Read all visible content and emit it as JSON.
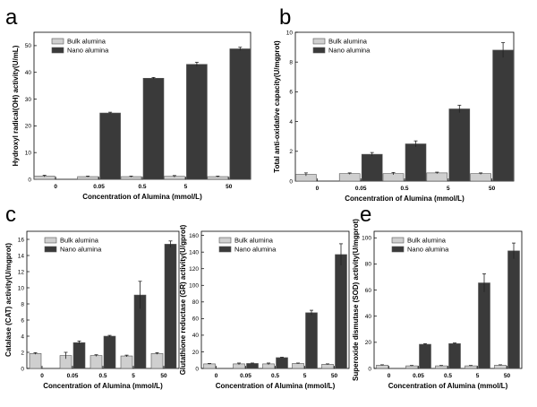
{
  "figure": {
    "panel_letters": [
      "a",
      "b",
      "c",
      "",
      "e"
    ]
  },
  "chart_data": [
    {
      "type": "bar",
      "panel": "a",
      "categories": [
        "0",
        "0.05",
        "0.5",
        "5",
        "50"
      ],
      "xlabel": "Concentration of Alumina (mmol/L)",
      "ylabel": "Hydroxyl radical(OH) activity(U/mL)",
      "ylim": [
        0,
        55
      ],
      "yticks": [
        0,
        10,
        20,
        30,
        40,
        50
      ],
      "legend_position": "top-left",
      "series": [
        {
          "name": "Bulk alumina",
          "color": "#cfcfcf",
          "values": [
            1.2,
            1.0,
            1.0,
            1.1,
            1.0
          ],
          "errors": [
            0.3,
            0.2,
            0.2,
            0.3,
            0.2
          ]
        },
        {
          "name": "Nano alumina",
          "color": "#3a3a3a",
          "values": [
            null,
            24.8,
            37.8,
            43.0,
            48.8
          ],
          "errors": [
            null,
            0.3,
            0.3,
            0.8,
            0.6
          ]
        }
      ]
    },
    {
      "type": "bar",
      "panel": "b",
      "categories": [
        "0",
        "0.05",
        "0.5",
        "5",
        "50"
      ],
      "xlabel": "Concentration of Alumina (mmol/L)",
      "ylabel": "Total anti-oxidative capacity(U/mgprot)",
      "ylim": [
        0,
        10
      ],
      "yticks": [
        0,
        2,
        4,
        6,
        8,
        10
      ],
      "legend_position": "top-left",
      "series": [
        {
          "name": "Bulk alumina",
          "color": "#cfcfcf",
          "values": [
            0.45,
            0.5,
            0.5,
            0.55,
            0.5
          ],
          "errors": [
            0.1,
            0.05,
            0.08,
            0.05,
            0.05
          ]
        },
        {
          "name": "Nano alumina",
          "color": "#3a3a3a",
          "values": [
            null,
            1.8,
            2.5,
            4.85,
            8.8
          ],
          "errors": [
            null,
            0.12,
            0.2,
            0.25,
            0.5
          ]
        }
      ]
    },
    {
      "type": "bar",
      "panel": "c",
      "categories": [
        "0",
        "0.05",
        "0.5",
        "5",
        "50"
      ],
      "xlabel": "Concentration of Alumina (mmol/L)",
      "ylabel": "Catalase (CAT) activity(U/mgprot)",
      "ylim": [
        0,
        17
      ],
      "yticks": [
        0,
        2,
        4,
        6,
        8,
        10,
        12,
        14,
        16
      ],
      "legend_position": "top-left",
      "series": [
        {
          "name": "Bulk alumina",
          "color": "#cfcfcf",
          "values": [
            1.85,
            1.6,
            1.6,
            1.55,
            1.85
          ],
          "errors": [
            0.1,
            0.4,
            0.1,
            0.1,
            0.1
          ]
        },
        {
          "name": "Nano alumina",
          "color": "#3a3a3a",
          "values": [
            null,
            3.2,
            4.0,
            9.1,
            15.4
          ],
          "errors": [
            null,
            0.2,
            0.1,
            1.7,
            0.4
          ]
        }
      ]
    },
    {
      "type": "bar",
      "panel": "",
      "categories": [
        "0",
        "0.05",
        "0.5",
        "5",
        "50"
      ],
      "xlabel": "Concentration of Alumina (mmol/L)",
      "ylabel": "Glutathione reductase (GR) activity(U/gprot)",
      "ylim": [
        0,
        165
      ],
      "yticks": [
        0,
        20,
        40,
        60,
        80,
        100,
        120,
        140,
        160
      ],
      "legend_position": "top-left",
      "series": [
        {
          "name": "Bulk alumina",
          "color": "#cfcfcf",
          "values": [
            5.5,
            5.5,
            5.5,
            6.0,
            5.0
          ],
          "errors": [
            0.5,
            1.0,
            1.0,
            0.5,
            0.5
          ]
        },
        {
          "name": "Nano alumina",
          "color": "#3a3a3a",
          "values": [
            null,
            6.0,
            13.0,
            67.0,
            137.0
          ],
          "errors": [
            null,
            0.5,
            0.5,
            3.0,
            13.0
          ]
        }
      ]
    },
    {
      "type": "bar",
      "panel": "e",
      "categories": [
        "0",
        "0.05",
        "0.5",
        "5",
        "50"
      ],
      "xlabel": "Concentration of Alumina (mmol/L)",
      "ylabel": "Superoxide dismutase (SOD) activity(U/mgprot)",
      "ylim": [
        0,
        105
      ],
      "yticks": [
        0,
        20,
        40,
        60,
        80,
        100
      ],
      "legend_position": "top-left",
      "series": [
        {
          "name": "Bulk alumina",
          "color": "#cfcfcf",
          "values": [
            2.5,
            2.0,
            2.0,
            2.0,
            2.5
          ],
          "errors": [
            0.3,
            0.3,
            0.3,
            0.3,
            0.3
          ]
        },
        {
          "name": "Nano alumina",
          "color": "#3a3a3a",
          "values": [
            null,
            18.5,
            19.0,
            65.5,
            90.0
          ],
          "errors": [
            null,
            0.5,
            0.5,
            7.0,
            6.0
          ]
        }
      ]
    }
  ]
}
